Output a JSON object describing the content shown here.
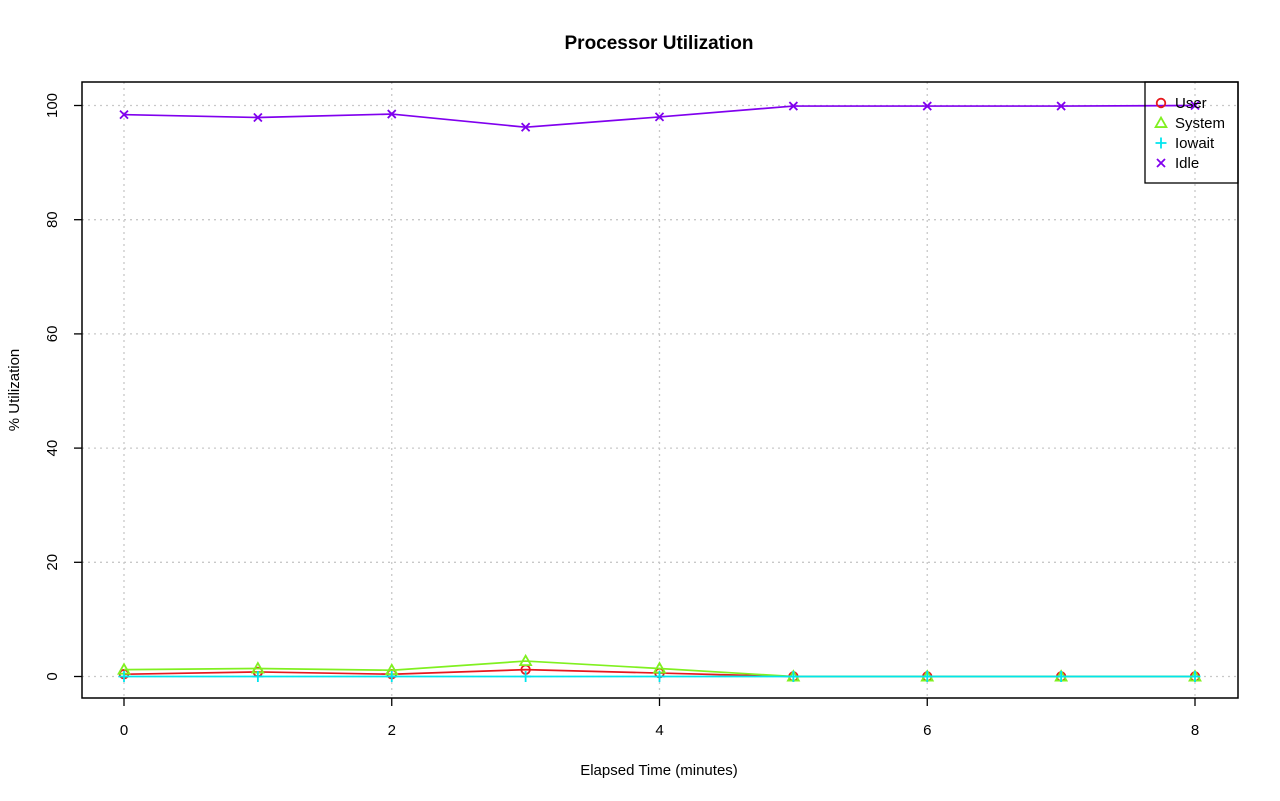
{
  "chart_data": {
    "type": "line",
    "title": "Processor Utilization",
    "xlabel": "Elapsed Time (minutes)",
    "ylabel": "% Utilization",
    "x": [
      0,
      1,
      2,
      3,
      4,
      5,
      6,
      7,
      8
    ],
    "xlim": [
      0,
      8
    ],
    "ylim": [
      0,
      100
    ],
    "xticks": [
      0,
      2,
      4,
      6,
      8
    ],
    "yticks": [
      0,
      20,
      40,
      60,
      80,
      100
    ],
    "grid": true,
    "legend_position": "top-right",
    "series": [
      {
        "name": "User",
        "color": "#e6191e",
        "marker": "circle",
        "values": [
          0.4,
          0.8,
          0.4,
          1.2,
          0.6,
          0.0,
          0.0,
          0.0,
          0.0
        ]
      },
      {
        "name": "System",
        "color": "#80f020",
        "marker": "triangle",
        "values": [
          1.2,
          1.4,
          1.1,
          2.7,
          1.4,
          0.0,
          0.0,
          0.0,
          0.0
        ]
      },
      {
        "name": "Iowait",
        "color": "#00e5ee",
        "marker": "plus",
        "values": [
          0.0,
          0.0,
          0.0,
          0.0,
          0.0,
          0.0,
          0.0,
          0.0,
          0.0
        ]
      },
      {
        "name": "Idle",
        "color": "#8000ee",
        "marker": "cross",
        "values": [
          98.4,
          97.9,
          98.5,
          96.2,
          98.0,
          99.9,
          99.9,
          99.9,
          100.0
        ]
      }
    ]
  }
}
